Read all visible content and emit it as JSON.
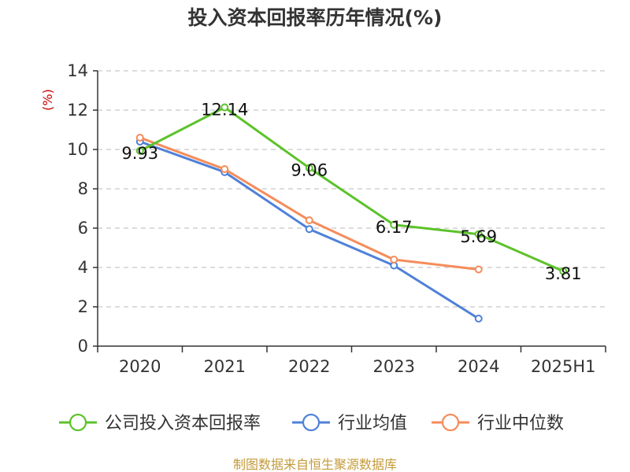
{
  "chart_data": {
    "type": "line",
    "title": "投入资本回报率历年情况(%)",
    "unit_label": "(%)",
    "categories": [
      "2020",
      "2021",
      "2022",
      "2023",
      "2024",
      "2025H1"
    ],
    "ylim": [
      0,
      14
    ],
    "yticks": [
      0,
      2,
      4,
      6,
      8,
      10,
      12,
      14
    ],
    "ytick_labels": [
      "0",
      "2",
      "4",
      "6",
      "8",
      "10",
      "12",
      "14"
    ],
    "grid": true,
    "legend_position": "bottom",
    "series": [
      {
        "name": "公司投入资本回报率",
        "color": "#5cc22a",
        "values": [
          9.93,
          12.14,
          9.06,
          6.17,
          5.69,
          3.81
        ],
        "labels": [
          "9.93",
          "12.14",
          "9.06",
          "6.17",
          "5.69",
          "3.81"
        ]
      },
      {
        "name": "行业均值",
        "color": "#4f81d8",
        "values": [
          10.4,
          8.85,
          5.95,
          4.1,
          1.4,
          null
        ]
      },
      {
        "name": "行业中位数",
        "color": "#f58c5a",
        "values": [
          10.6,
          9.0,
          6.4,
          4.4,
          3.9,
          null
        ]
      }
    ]
  },
  "source_text": "制图数据来自恒生聚源数据库"
}
